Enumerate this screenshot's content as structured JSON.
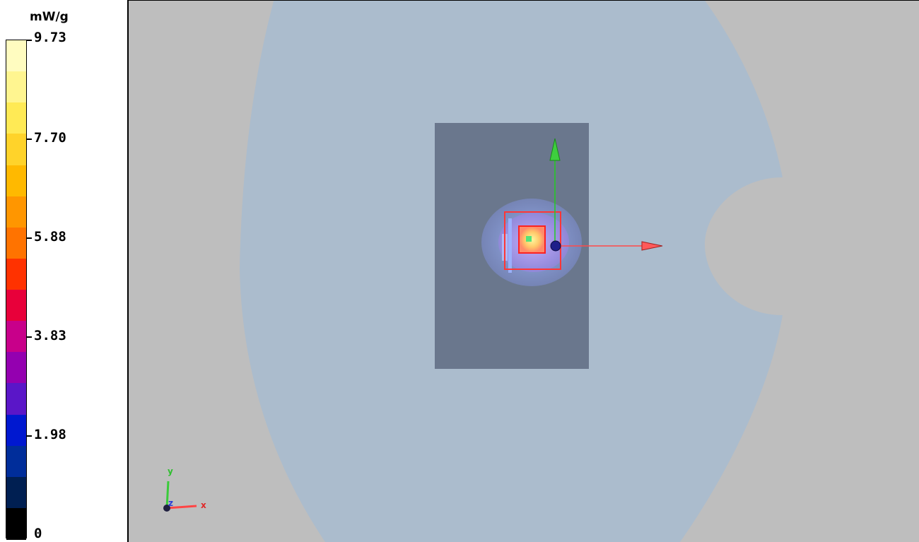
{
  "legend": {
    "unit": "mW/g",
    "labels": [
      "9.73",
      "7.70",
      "5.88",
      "3.83",
      "1.98",
      "0"
    ],
    "colors": [
      "#fffcc0",
      "#fff590",
      "#ffea55",
      "#ffd32a",
      "#ffb900",
      "#ff9600",
      "#ff7300",
      "#ff3200",
      "#e8003a",
      "#c8008a",
      "#9400b0",
      "#5a16c8",
      "#0018d0",
      "#002d9a",
      "#001f52",
      "#000000"
    ]
  },
  "viewport": {
    "background": "#bebebe",
    "phantom_color": "#abbccd",
    "device_color": "#6a778d"
  },
  "orientation_axes": {
    "y_label": "y",
    "z_label": "z",
    "x_label": "x"
  }
}
